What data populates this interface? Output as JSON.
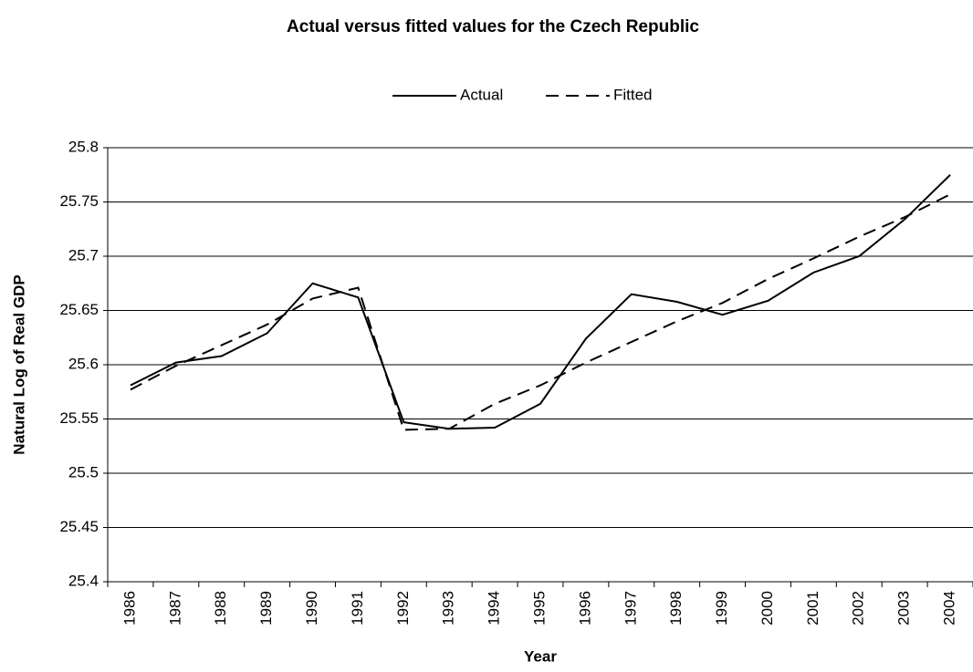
{
  "chart_data": {
    "type": "line",
    "title": "Actual versus fitted values for the Czech Republic",
    "x_label": "Year",
    "y_label": "Natural Log of Real GDP",
    "categories": [
      "1986",
      "1987",
      "1988",
      "1989",
      "1990",
      "1991",
      "1992",
      "1993",
      "1994",
      "1995",
      "1996",
      "1997",
      "1998",
      "1999",
      "2000",
      "2001",
      "2002",
      "2003",
      "2004"
    ],
    "series": [
      {
        "name": "Actual",
        "color": "#000000",
        "style": "solid",
        "values": [
          25.581,
          25.602,
          25.608,
          25.629,
          25.675,
          25.662,
          25.547,
          25.541,
          25.542,
          25.564,
          25.624,
          25.665,
          25.658,
          25.646,
          25.659,
          25.685,
          25.7,
          25.734,
          25.775
        ]
      },
      {
        "name": "Fitted",
        "color": "#000000",
        "style": "dashed",
        "values": [
          25.577,
          25.599,
          25.618,
          25.637,
          25.661,
          25.671,
          25.54,
          25.541,
          25.564,
          25.581,
          25.602,
          25.621,
          25.64,
          25.657,
          25.679,
          25.698,
          25.718,
          25.736,
          25.757
        ]
      }
    ],
    "ylim": [
      25.4,
      25.8
    ],
    "yticks": [
      25.4,
      25.45,
      25.5,
      25.55,
      25.6,
      25.65,
      25.7,
      25.75,
      25.8
    ],
    "grid": true,
    "legend": "top"
  }
}
